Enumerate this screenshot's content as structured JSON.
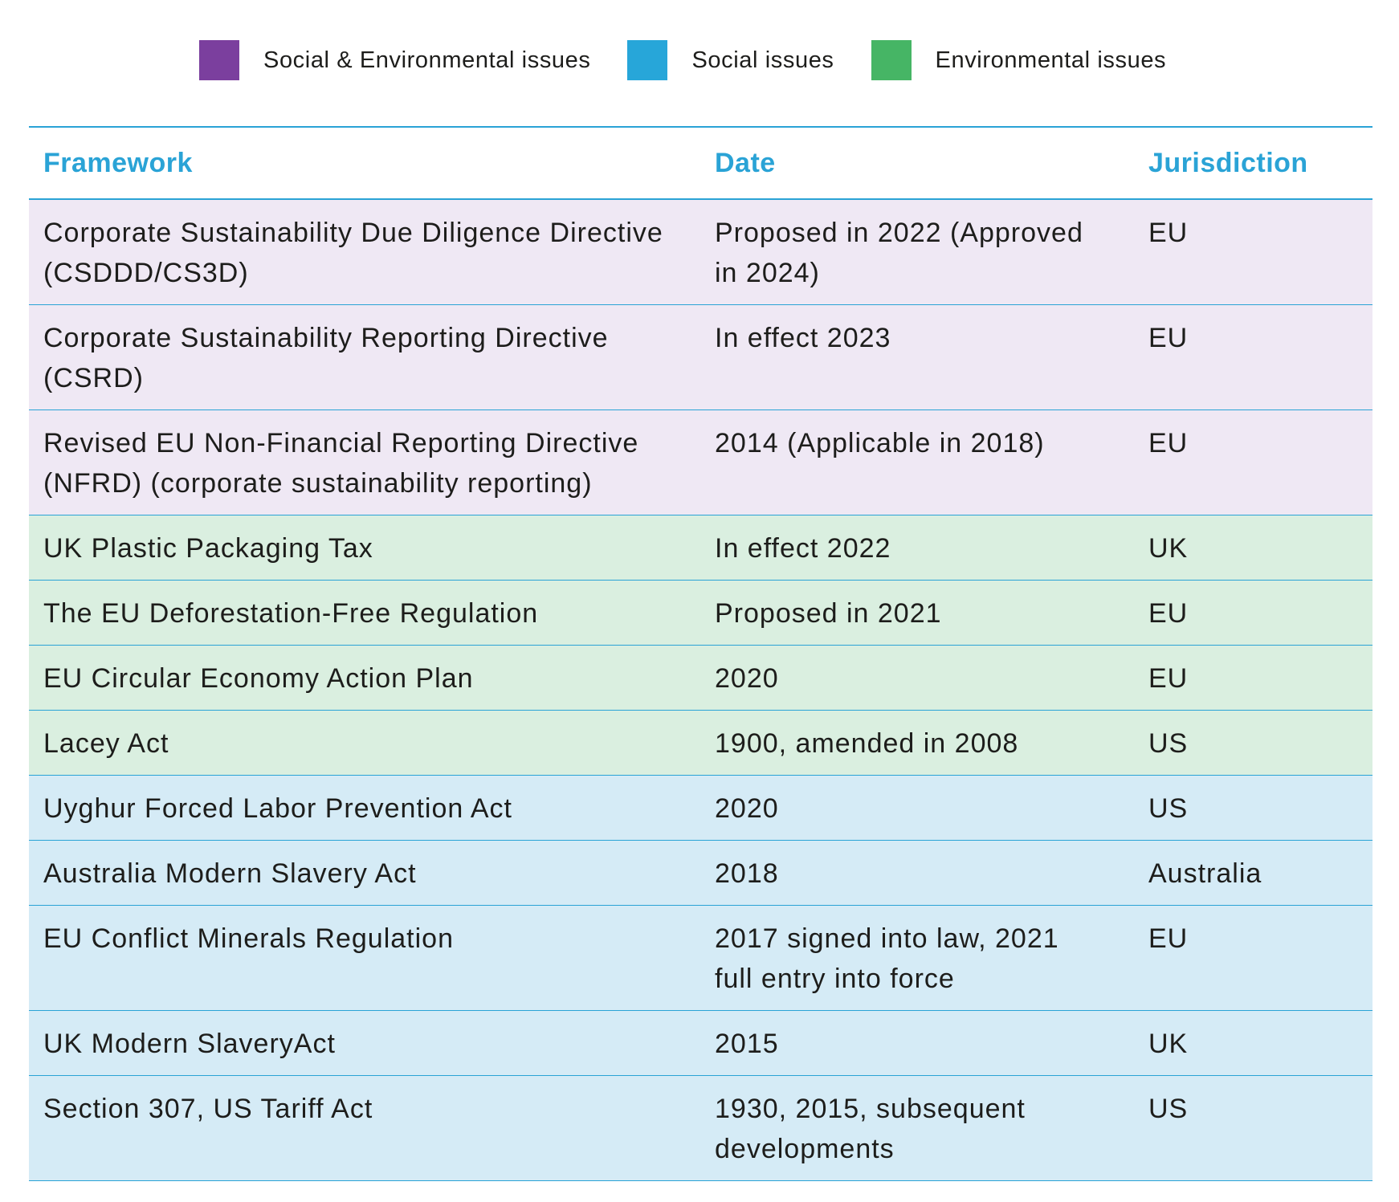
{
  "legend": [
    {
      "label": "Social & Environmental issues",
      "color": "#7b3f9e"
    },
    {
      "label": "Social issues",
      "color": "#27a6d9"
    },
    {
      "label": "Environmental issues",
      "color": "#46b565"
    }
  ],
  "table": {
    "headers": [
      "Framework",
      "Date",
      "Jurisdiction"
    ],
    "groups": [
      {
        "color": "#efe8f4",
        "rows": [
          [
            "Corporate Sustainability Due Diligence Directive (CSDDD/CS3D)",
            "Proposed in 2022 (Approved in 2024)",
            "EU"
          ],
          [
            "Corporate Sustainability Reporting Directive (CSRD)",
            "In effect 2023",
            "EU"
          ],
          [
            "Revised EU Non-Financial Reporting Directive (NFRD) (corporate sustainability reporting)",
            "2014 (Applicable in 2018)",
            "EU"
          ]
        ]
      },
      {
        "color": "#daefe0",
        "rows": [
          [
            "UK Plastic Packaging Tax",
            "In effect 2022",
            "UK"
          ],
          [
            "The EU Deforestation-Free Regulation",
            "Proposed in 2021",
            "EU"
          ],
          [
            "EU Circular Economy Action Plan",
            "2020",
            "EU"
          ],
          [
            "Lacey Act",
            "1900, amended in 2008",
            "US"
          ]
        ]
      },
      {
        "color": "#d5ebf6",
        "rows": [
          [
            "Uyghur Forced Labor Prevention Act",
            "2020",
            "US"
          ],
          [
            "Australia Modern Slavery Act",
            "2018",
            "Australia"
          ],
          [
            "EU Conflict Minerals Regulation",
            "2017 signed into law, 2021 full entry into force",
            "EU"
          ],
          [
            "UK Modern SlaveryAct",
            "2015",
            "UK"
          ],
          [
            "Section 307, US Tariff Act",
            "1930, 2015, subsequent developments",
            "US"
          ]
        ]
      }
    ]
  }
}
